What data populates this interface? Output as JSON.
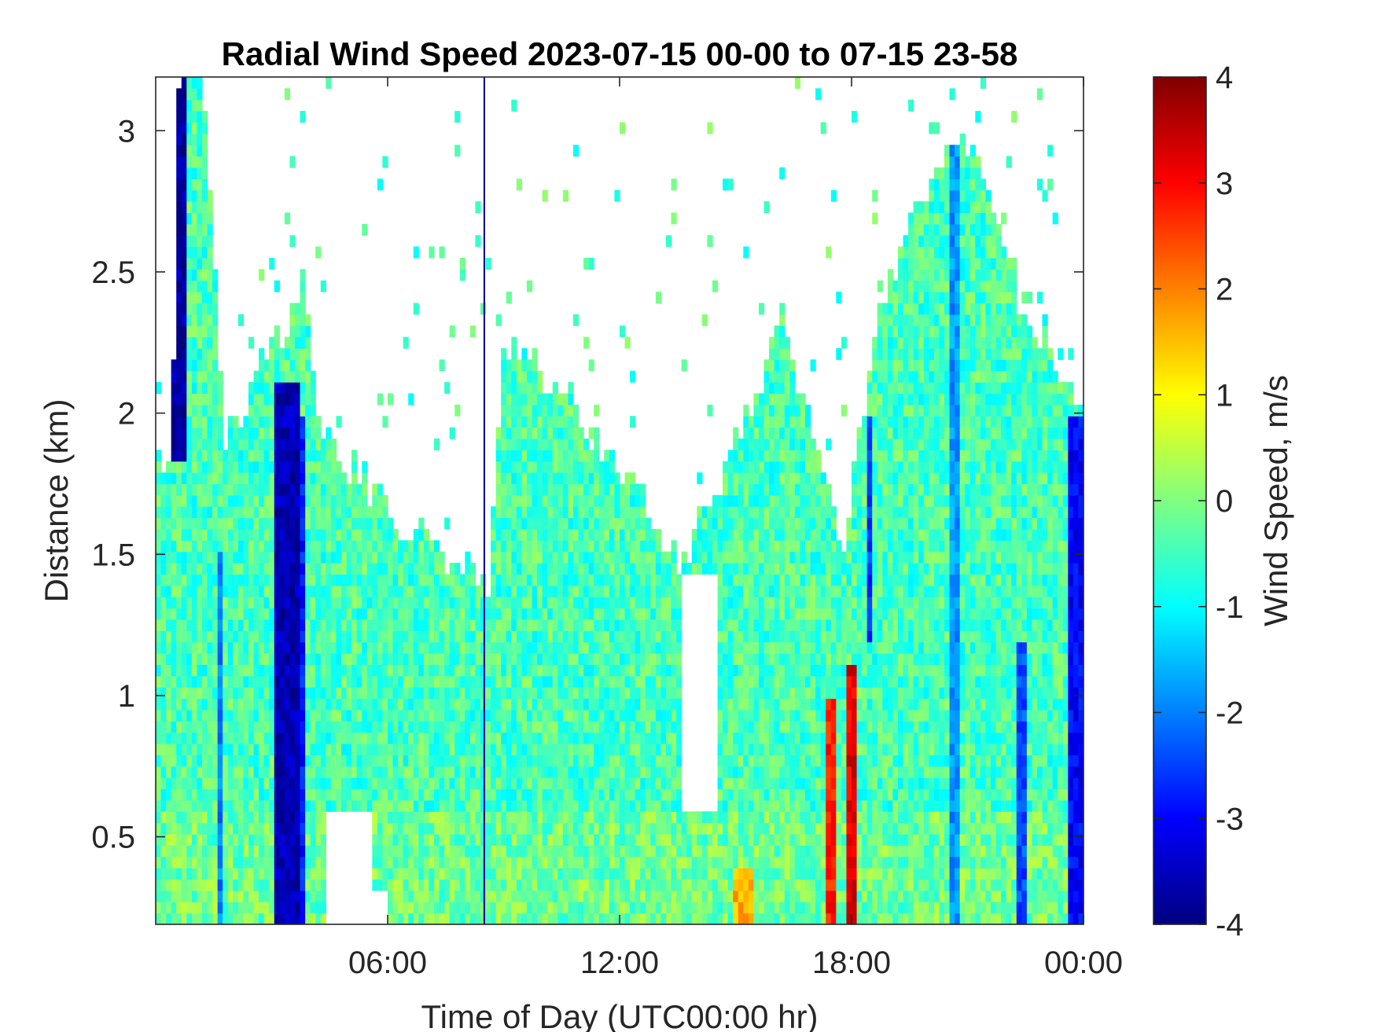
{
  "chart_data": {
    "type": "heatmap",
    "title": "Radial Wind Speed 2023-07-15 00-00 to 07-15 23-58",
    "xlabel": "Time of Day (UTC00:00 hr)",
    "ylabel": "Distance (km)",
    "xlim": [
      0,
      24
    ],
    "ylim": [
      0.19,
      3.19
    ],
    "x_ticks": [
      {
        "value": 6,
        "label": "06:00"
      },
      {
        "value": 12,
        "label": "12:00"
      },
      {
        "value": 18,
        "label": "18:00"
      },
      {
        "value": 24,
        "label": "00:00"
      }
    ],
    "y_ticks": [
      {
        "value": 0.5,
        "label": "0.5"
      },
      {
        "value": 1,
        "label": "1"
      },
      {
        "value": 1.5,
        "label": "1.5"
      },
      {
        "value": 2,
        "label": "2"
      },
      {
        "value": 2.5,
        "label": "2.5"
      },
      {
        "value": 3,
        "label": "3"
      }
    ],
    "colorbar": {
      "label": "Wind Speed, m/s",
      "clim": [
        -4,
        4
      ],
      "colormap": "jet",
      "ticks": [
        {
          "value": 4,
          "label": "4"
        },
        {
          "value": 3,
          "label": "3"
        },
        {
          "value": 2,
          "label": "2"
        },
        {
          "value": 1,
          "label": "1"
        },
        {
          "value": 0,
          "label": "0"
        },
        {
          "value": -1,
          "label": "-1"
        },
        {
          "value": -2,
          "label": "-2"
        },
        {
          "value": -3,
          "label": "-3"
        },
        {
          "value": -4,
          "label": "-4"
        }
      ]
    },
    "data_top_km": [
      [
        0.0,
        1.85
      ],
      [
        0.4,
        1.75
      ],
      [
        0.6,
        3.19
      ],
      [
        1.2,
        3.19
      ],
      [
        1.8,
        1.9
      ],
      [
        2.5,
        2.1
      ],
      [
        3.0,
        2.25
      ],
      [
        3.4,
        2.3
      ],
      [
        3.8,
        2.5
      ],
      [
        4.2,
        2.0
      ],
      [
        4.6,
        1.85
      ],
      [
        5.2,
        1.8
      ],
      [
        5.8,
        1.7
      ],
      [
        6.4,
        1.6
      ],
      [
        7.0,
        1.55
      ],
      [
        7.6,
        1.5
      ],
      [
        8.2,
        1.45
      ],
      [
        8.6,
        1.4
      ],
      [
        9.0,
        2.2
      ],
      [
        9.6,
        2.2
      ],
      [
        10.2,
        2.1
      ],
      [
        10.8,
        2.05
      ],
      [
        11.4,
        1.9
      ],
      [
        12.0,
        1.8
      ],
      [
        12.6,
        1.7
      ],
      [
        13.2,
        1.55
      ],
      [
        13.6,
        1.45
      ],
      [
        14.0,
        1.6
      ],
      [
        14.5,
        1.75
      ],
      [
        15.0,
        1.9
      ],
      [
        15.6,
        2.1
      ],
      [
        16.2,
        2.35
      ],
      [
        16.8,
        2.0
      ],
      [
        17.3,
        1.8
      ],
      [
        17.8,
        1.55
      ],
      [
        18.2,
        1.9
      ],
      [
        18.8,
        2.4
      ],
      [
        19.4,
        2.6
      ],
      [
        20.0,
        2.8
      ],
      [
        20.6,
        3.0
      ],
      [
        21.2,
        2.9
      ],
      [
        21.8,
        2.6
      ],
      [
        22.4,
        2.4
      ],
      [
        23.0,
        2.25
      ],
      [
        23.5,
        2.1
      ],
      [
        24.0,
        2.0
      ]
    ],
    "gap_regions": [
      {
        "t0": 4.4,
        "t1": 5.6,
        "d0": 0.19,
        "d1": 0.6
      },
      {
        "t0": 5.6,
        "t1": 6.0,
        "d0": 0.19,
        "d1": 0.3
      },
      {
        "t0": 13.6,
        "t1": 14.5,
        "d0": 0.6,
        "d1": 1.45
      }
    ],
    "features": [
      {
        "t0": 0.45,
        "t1": 0.75,
        "d0": 1.85,
        "d1": 3.19,
        "v": -3.7
      },
      {
        "t0": 3.1,
        "t1": 3.7,
        "d0": 0.19,
        "d1": 2.1,
        "v": -3.6
      },
      {
        "t0": 3.7,
        "t1": 3.9,
        "d0": 0.19,
        "d1": 2.0,
        "v": -2.8
      },
      {
        "t0": 17.4,
        "t1": 17.65,
        "d0": 0.19,
        "d1": 1.0,
        "v": 2.8
      },
      {
        "t0": 17.9,
        "t1": 18.15,
        "d0": 0.19,
        "d1": 1.1,
        "v": 3.2
      },
      {
        "t0": 23.6,
        "t1": 24.0,
        "d0": 0.19,
        "d1": 2.0,
        "v": -3.0
      },
      {
        "t0": 15.0,
        "t1": 15.5,
        "d0": 0.19,
        "d1": 0.4,
        "v": 1.6
      },
      {
        "t0": 1.6,
        "t1": 1.8,
        "d0": 0.19,
        "d1": 1.5,
        "v": -2.0
      },
      {
        "t0": 18.4,
        "t1": 18.6,
        "d0": 1.2,
        "d1": 2.0,
        "v": -2.6
      },
      {
        "t0": 20.6,
        "t1": 20.8,
        "d0": 0.19,
        "d1": 3.0,
        "v": -1.8
      },
      {
        "t0": 22.3,
        "t1": 22.5,
        "d0": 0.19,
        "d1": 1.2,
        "v": -2.4
      }
    ],
    "vertical_lines": [
      {
        "t": 8.5,
        "value": -3.8
      }
    ]
  }
}
